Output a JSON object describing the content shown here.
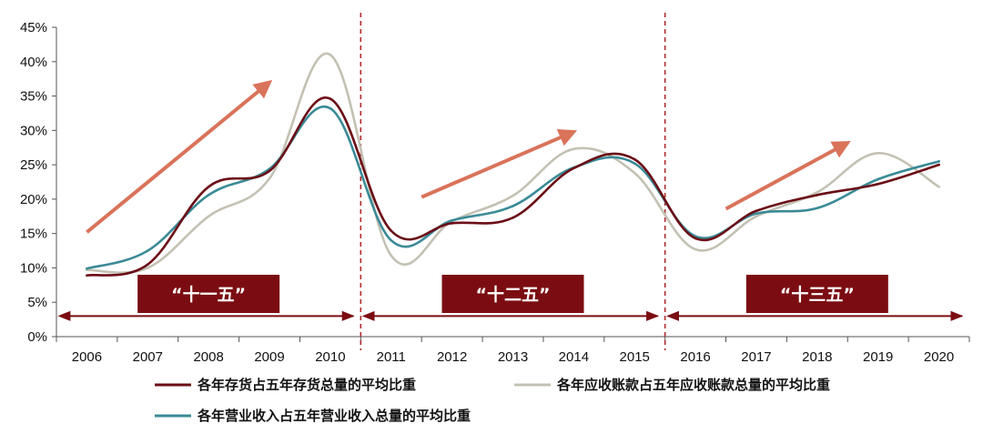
{
  "chart_data": {
    "type": "line",
    "title": "",
    "xlabel": "",
    "ylabel": "",
    "categories": [
      "2006",
      "2007",
      "2008",
      "2009",
      "2010",
      "2011",
      "2012",
      "2013",
      "2014",
      "2015",
      "2016",
      "2017",
      "2018",
      "2019",
      "2020"
    ],
    "yticks": [
      "0%",
      "5%",
      "10%",
      "15%",
      "20%",
      "25%",
      "30%",
      "35%",
      "40%",
      "45%"
    ],
    "ylim": [
      0,
      45
    ],
    "series": [
      {
        "name": "各年存货占五年存货总量的平均比重",
        "color": "#6b0d16",
        "values": [
          8.9,
          10.5,
          21.8,
          24.1,
          34.6,
          15.4,
          16.5,
          17.3,
          24.5,
          25.8,
          14.3,
          18.3,
          20.6,
          22.2,
          25.0
        ]
      },
      {
        "name": "各年应收账款占五年应收账款总量的平均比重",
        "color": "#c3c1b3",
        "values": [
          9.7,
          10.0,
          17.5,
          23.0,
          41.0,
          11.8,
          16.8,
          20.5,
          27.3,
          23.8,
          12.7,
          17.5,
          21.0,
          26.7,
          21.8
        ]
      },
      {
        "name": "各年营业收入占五年营业收入总量的平均比重",
        "color": "#3a8a96",
        "values": [
          9.9,
          12.5,
          20.6,
          24.4,
          33.2,
          14.0,
          16.9,
          19.0,
          24.6,
          25.2,
          14.6,
          17.9,
          18.7,
          22.9,
          25.5
        ]
      }
    ],
    "periods": [
      {
        "label": "“十一五”",
        "from": "2006",
        "to": "2010"
      },
      {
        "label": "“十二五”",
        "from": "2011",
        "to": "2015"
      },
      {
        "label": "“十三五”",
        "from": "2016",
        "to": "2020"
      }
    ],
    "trend_arrows": [
      {
        "from": [
          "2006",
          15.2
        ],
        "to": [
          "2009",
          37.0
        ]
      },
      {
        "from": [
          "2011.5",
          20.3
        ],
        "to": [
          "2014",
          29.8
        ]
      },
      {
        "from": [
          "2016.5",
          18.6
        ],
        "to": [
          "2018.5",
          28.2
        ]
      }
    ],
    "colors": {
      "period_box": "#7b0d12",
      "divider": "#b02a2a",
      "arrow": "#d9735a",
      "span_arrow": "#7b0d12"
    },
    "grid": false,
    "legend_position": "bottom"
  }
}
